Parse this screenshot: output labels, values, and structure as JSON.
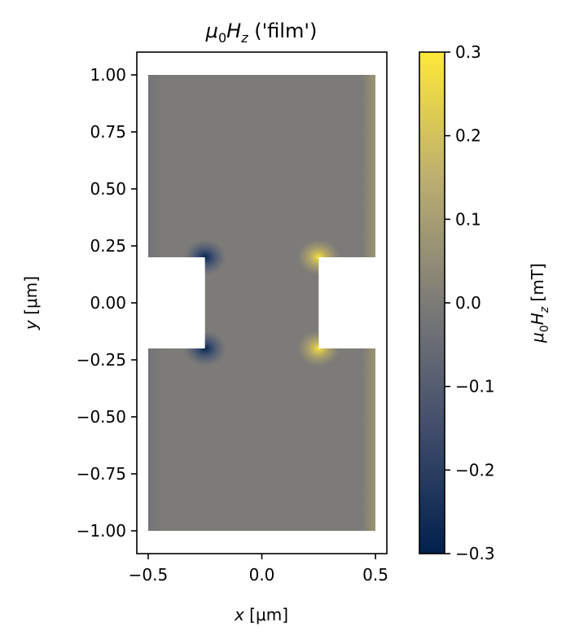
{
  "chart_data": {
    "type": "heatmap",
    "title": {
      "symbol": "μ",
      "sub0": "0",
      "var": "H",
      "subz": "z",
      "rest": " ('film')"
    },
    "xlabel": {
      "var": "x",
      "unit": " [μm]"
    },
    "ylabel": {
      "var": "y",
      "unit": " [μm]"
    },
    "xlim": [
      -0.55,
      0.55
    ],
    "ylim": [
      -1.1,
      1.1
    ],
    "xticks": [
      -0.5,
      0.0,
      0.5
    ],
    "xtick_labels": [
      "−0.5",
      "0.0",
      "0.5"
    ],
    "yticks": [
      1.0,
      0.75,
      0.5,
      0.25,
      0.0,
      -0.25,
      -0.5,
      -0.75,
      -1.0
    ],
    "ytick_labels": [
      "1.00",
      "0.75",
      "0.50",
      "0.25",
      "0.00",
      "−0.25",
      "−0.50",
      "−0.75",
      "−1.00"
    ],
    "film_geometry": {
      "outer_x": [
        -0.5,
        0.5
      ],
      "outer_y": [
        -1.0,
        1.0
      ],
      "notches": [
        {
          "x": [
            -0.5,
            -0.25
          ],
          "y": [
            -0.2,
            0.2
          ]
        },
        {
          "x": [
            0.25,
            0.5
          ],
          "y": [
            -0.2,
            0.2
          ]
        }
      ]
    },
    "field_range_mT": [
      -0.3,
      0.3
    ],
    "colormap": "cividis",
    "colormap_stops": [
      "#00204c",
      "#414d6b",
      "#7c7b78",
      "#bcaf6f",
      "#fee838"
    ],
    "colorbar": {
      "label": {
        "symbol": "μ",
        "sub0": "0",
        "var": "H",
        "subz": "z",
        "unit": " [mT]"
      },
      "ticks": [
        0.3,
        0.2,
        0.1,
        0.0,
        -0.1,
        -0.2,
        -0.3
      ],
      "tick_labels": [
        "0.3",
        "0.2",
        "0.1",
        "0.0",
        "−0.1",
        "−0.2",
        "−0.3"
      ]
    }
  }
}
